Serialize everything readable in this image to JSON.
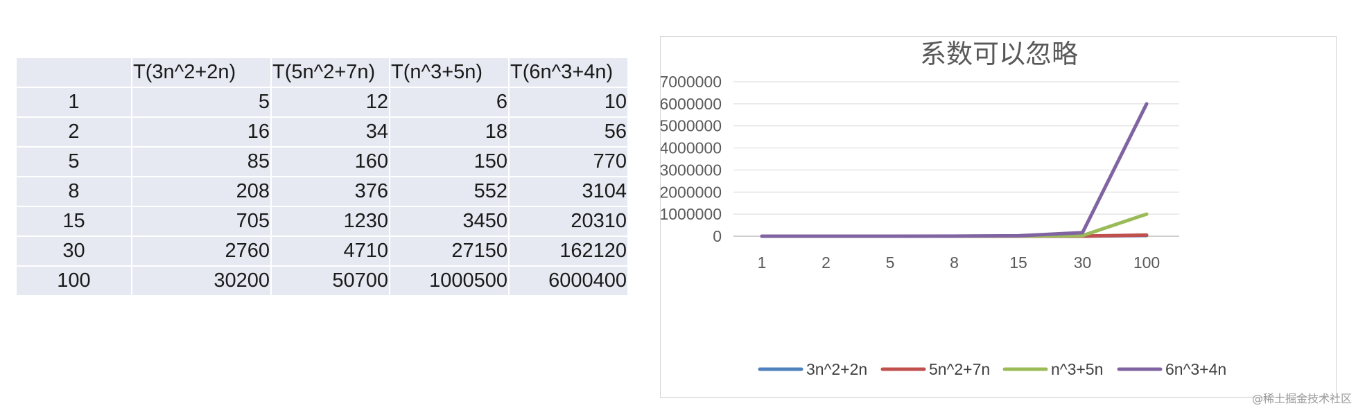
{
  "table": {
    "headers": [
      "",
      "T(3n^2+2n)",
      "T(5n^2+7n)",
      "T(n^3+5n)",
      "T(6n^3+4n)"
    ],
    "rows": [
      [
        "1",
        "5",
        "12",
        "6",
        "10"
      ],
      [
        "2",
        "16",
        "34",
        "18",
        "56"
      ],
      [
        "5",
        "85",
        "160",
        "150",
        "770"
      ],
      [
        "8",
        "208",
        "376",
        "552",
        "3104"
      ],
      [
        "15",
        "705",
        "1230",
        "3450",
        "20310"
      ],
      [
        "30",
        "2760",
        "4710",
        "27150",
        "162120"
      ],
      [
        "100",
        "30200",
        "50700",
        "1000500",
        "6000400"
      ]
    ]
  },
  "chart_data": {
    "type": "line",
    "title": "系数可以忽略",
    "categories": [
      "1",
      "2",
      "5",
      "8",
      "15",
      "30",
      "100"
    ],
    "ylim": [
      0,
      7000000
    ],
    "yticks": [
      0,
      1000000,
      2000000,
      3000000,
      4000000,
      5000000,
      6000000,
      7000000
    ],
    "grid": true,
    "legend_position": "bottom",
    "series": [
      {
        "name": "3n^2+2n",
        "color": "#4f81bd",
        "values": [
          5,
          16,
          85,
          208,
          705,
          2760,
          30200
        ]
      },
      {
        "name": "5n^2+7n",
        "color": "#c0504d",
        "values": [
          12,
          34,
          160,
          376,
          1230,
          4710,
          50700
        ]
      },
      {
        "name": "n^3+5n",
        "color": "#9bbb59",
        "values": [
          6,
          18,
          150,
          552,
          3450,
          27150,
          1000500
        ]
      },
      {
        "name": "6n^3+4n",
        "color": "#8064a2",
        "values": [
          10,
          56,
          770,
          3104,
          20310,
          162120,
          6000400
        ]
      }
    ]
  },
  "watermark": "@稀土掘金技术社区"
}
